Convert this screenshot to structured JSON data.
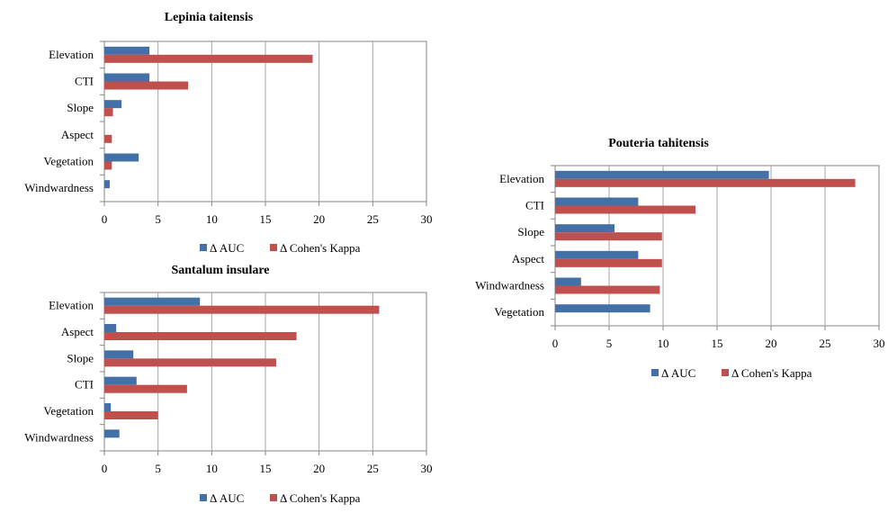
{
  "colors": {
    "auc": "#4470a8",
    "kappa": "#c0504d",
    "grid": "#a6a6a6",
    "axis": "#868686"
  },
  "chart_data": [
    {
      "type": "bar",
      "orientation": "horizontal",
      "title": "Lepinia taitensis",
      "categories": [
        "Elevation",
        "CTI",
        "Slope",
        "Aspect",
        "Vegetation",
        "Windwardness"
      ],
      "series": [
        {
          "name": "Δ AUC",
          "values": [
            4.2,
            4.2,
            1.6,
            0,
            3.2,
            0.5
          ]
        },
        {
          "name": "Δ Cohen's Kappa",
          "values": [
            19.4,
            7.8,
            0.8,
            0.7,
            0.7,
            0
          ]
        }
      ],
      "xlim": [
        0,
        30
      ],
      "ticks": [
        "0",
        "5",
        "10",
        "15",
        "20",
        "25",
        "30"
      ],
      "grid": true,
      "legend": "bottom"
    },
    {
      "type": "bar",
      "orientation": "horizontal",
      "title": "Santalum insulare",
      "categories": [
        "Elevation",
        "Aspect",
        "Slope",
        "CTI",
        "Vegetation",
        "Windwardness"
      ],
      "series": [
        {
          "name": "Δ AUC",
          "values": [
            8.9,
            1.1,
            2.7,
            3.0,
            0.6,
            1.4
          ]
        },
        {
          "name": "Δ Cohen's Kappa",
          "values": [
            25.6,
            17.9,
            16.0,
            7.7,
            5.0,
            0
          ]
        }
      ],
      "xlim": [
        0,
        30
      ],
      "ticks": [
        "0",
        "5",
        "10",
        "15",
        "20",
        "25",
        "30"
      ],
      "grid": true,
      "legend": "bottom"
    },
    {
      "type": "bar",
      "orientation": "horizontal",
      "title": "Pouteria tahitensis",
      "categories": [
        "Elevation",
        "CTI",
        "Slope",
        "Aspect",
        "Windwardness",
        "Vegetation"
      ],
      "series": [
        {
          "name": "Δ AUC",
          "values": [
            19.8,
            7.7,
            5.5,
            7.7,
            2.4,
            8.8
          ]
        },
        {
          "name": "Δ Cohen's Kappa",
          "values": [
            27.8,
            13.0,
            9.9,
            9.9,
            9.7,
            0
          ]
        }
      ],
      "xlim": [
        0,
        30
      ],
      "ticks": [
        "0",
        "5",
        "10",
        "15",
        "20",
        "25",
        "30"
      ],
      "grid": true,
      "legend": "bottom"
    }
  ]
}
